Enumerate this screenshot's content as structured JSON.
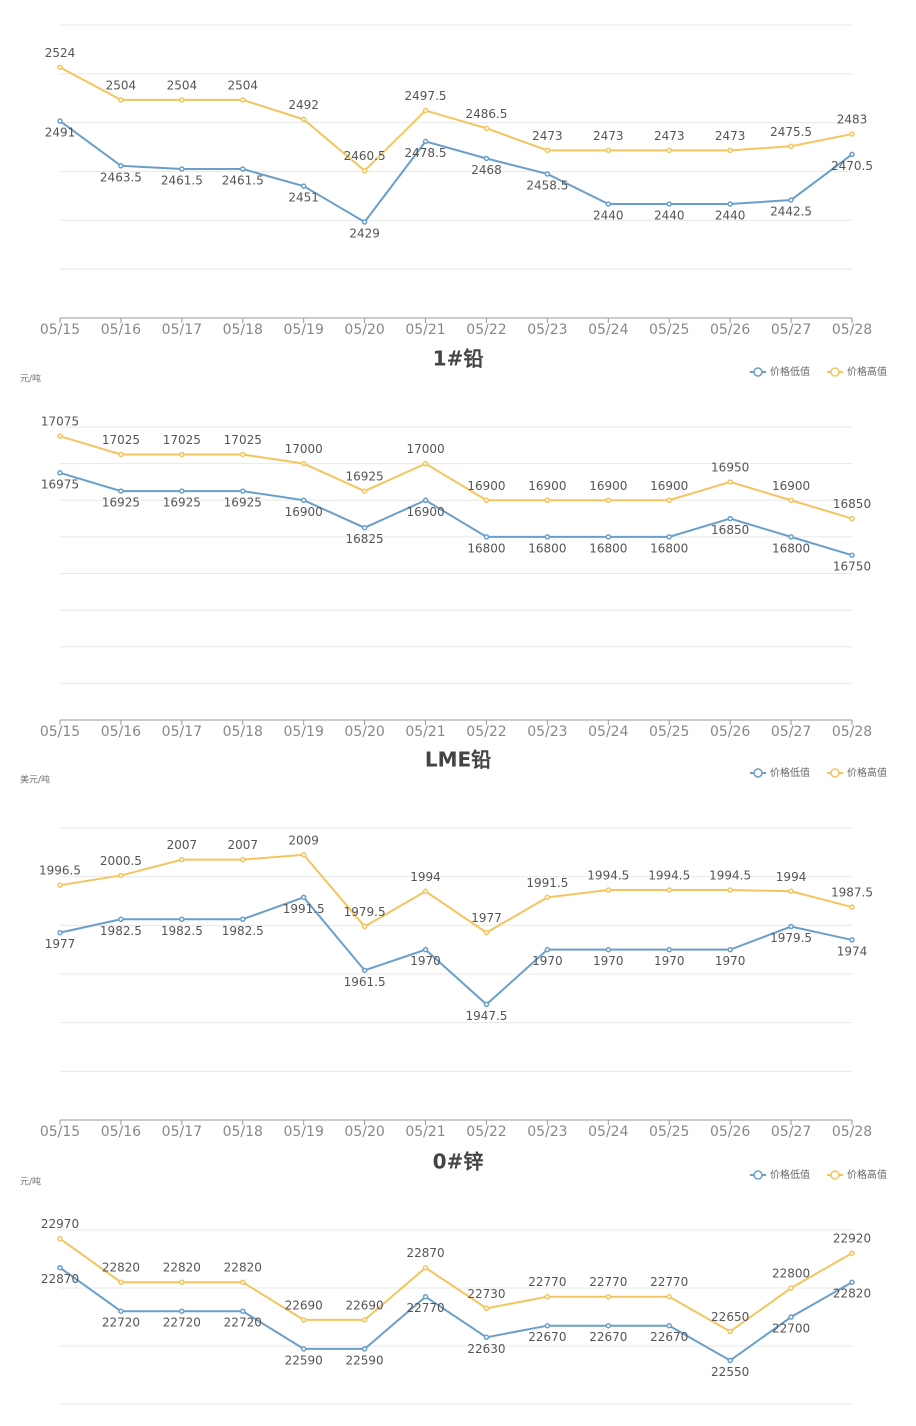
{
  "chart_data": [
    {
      "type": "line",
      "categories": [
        "05/15",
        "05/16",
        "05/17",
        "05/18",
        "05/19",
        "05/20",
        "05/21",
        "05/22",
        "05/23",
        "05/24",
        "05/25",
        "05/26",
        "05/27",
        "05/28"
      ],
      "series": [
        {
          "color": "#6a9fcb",
          "values": [
            2491,
            2463.5,
            2461.5,
            2461.5,
            2451,
            2429,
            2478.5,
            2468,
            2458.5,
            2440,
            2440,
            2440,
            2442.5,
            2470.5
          ]
        },
        {
          "color": "#f4c55e",
          "values": [
            2524,
            2504,
            2504,
            2504,
            2492,
            2460.5,
            2497.5,
            2486.5,
            2473,
            2473,
            2473,
            2473,
            2475.5,
            2483
          ]
        }
      ],
      "ylim": [
        2370,
        2550
      ],
      "yticks": [
        2370,
        2400,
        2430,
        2460,
        2490,
        2520,
        2550
      ],
      "grid": true
    },
    {
      "type": "line",
      "title": "1#铅",
      "ylabel": "元/吨",
      "categories": [
        "05/15",
        "05/16",
        "05/17",
        "05/18",
        "05/19",
        "05/20",
        "05/21",
        "05/22",
        "05/23",
        "05/24",
        "05/25",
        "05/26",
        "05/27",
        "05/28"
      ],
      "series": [
        {
          "name": "价格低值",
          "color": "#6a9fcb",
          "values": [
            16975,
            16925,
            16925,
            16925,
            16900,
            16825,
            16900,
            16800,
            16800,
            16800,
            16800,
            16850,
            16800,
            16750
          ]
        },
        {
          "name": "价格高值",
          "color": "#f4c55e",
          "values": [
            17075,
            17025,
            17025,
            17025,
            17000,
            16925,
            17000,
            16900,
            16900,
            16900,
            16900,
            16950,
            16900,
            16850
          ]
        }
      ],
      "ylim": [
        16300,
        17100
      ],
      "yticks": [
        16300,
        16400,
        16500,
        16600,
        16700,
        16800,
        16900,
        17000,
        17100
      ],
      "grid": true
    },
    {
      "type": "line",
      "title": "LME铅",
      "ylabel": "美元/吨",
      "categories": [
        "05/15",
        "05/16",
        "05/17",
        "05/18",
        "05/19",
        "05/20",
        "05/21",
        "05/22",
        "05/23",
        "05/24",
        "05/25",
        "05/26",
        "05/27",
        "05/28"
      ],
      "series": [
        {
          "name": "价格低值",
          "color": "#6a9fcb",
          "values": [
            1977,
            1982.5,
            1982.5,
            1982.5,
            1991.5,
            1961.5,
            1970,
            1947.5,
            1970,
            1970,
            1970,
            1970,
            1979.5,
            1974
          ]
        },
        {
          "name": "价格高值",
          "color": "#f4c55e",
          "values": [
            1996.5,
            2000.5,
            2007,
            2007,
            2009,
            1979.5,
            1994,
            1977,
            1991.5,
            1994.5,
            1994.5,
            1994.5,
            1994,
            1987.5
          ]
        }
      ],
      "ylim": [
        1900,
        2020
      ],
      "yticks": [
        1900,
        1920,
        1940,
        1960,
        1980,
        2000,
        2020
      ],
      "grid": true
    },
    {
      "type": "line",
      "title": "0#锌",
      "ylabel": "元/吨",
      "series": [
        {
          "name": "价格低值",
          "color": "#6a9fcb",
          "values": [
            22870,
            22720,
            22720,
            22720,
            22590,
            22590,
            22770,
            22630,
            22670,
            22670,
            22670,
            22550,
            22700,
            22820
          ]
        },
        {
          "name": "价格高值",
          "color": "#f4c55e",
          "values": [
            22970,
            22820,
            22820,
            22820,
            22690,
            22690,
            22870,
            22730,
            22770,
            22770,
            22770,
            22650,
            22800,
            22920
          ]
        }
      ],
      "ylim": [
        22400,
        23000
      ],
      "yticks": [
        22400,
        22600,
        22800,
        23000
      ],
      "grid": true
    }
  ]
}
